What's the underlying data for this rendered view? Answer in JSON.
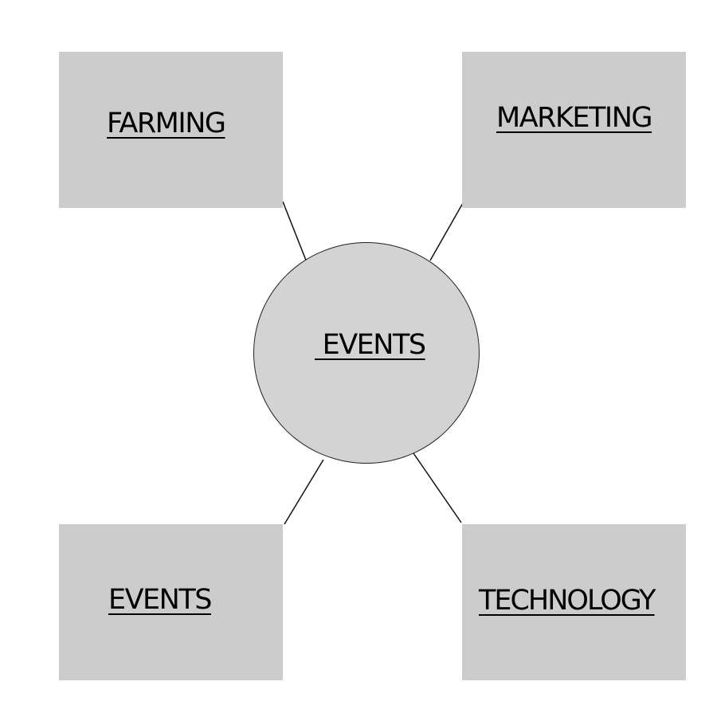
{
  "diagram": {
    "center": {
      "label": " EVENTS"
    },
    "nodes": [
      {
        "id": "farming",
        "label": "FARMING"
      },
      {
        "id": "marketing",
        "label": "MARKETING"
      },
      {
        "id": "events",
        "label": "EVENTS"
      },
      {
        "id": "technology",
        "label": "TECHNOLOGY"
      }
    ],
    "colors": {
      "box_fill": "#cccccc",
      "circle_fill": "#d3d3d3",
      "line": "#111111",
      "text": "#000000"
    }
  }
}
